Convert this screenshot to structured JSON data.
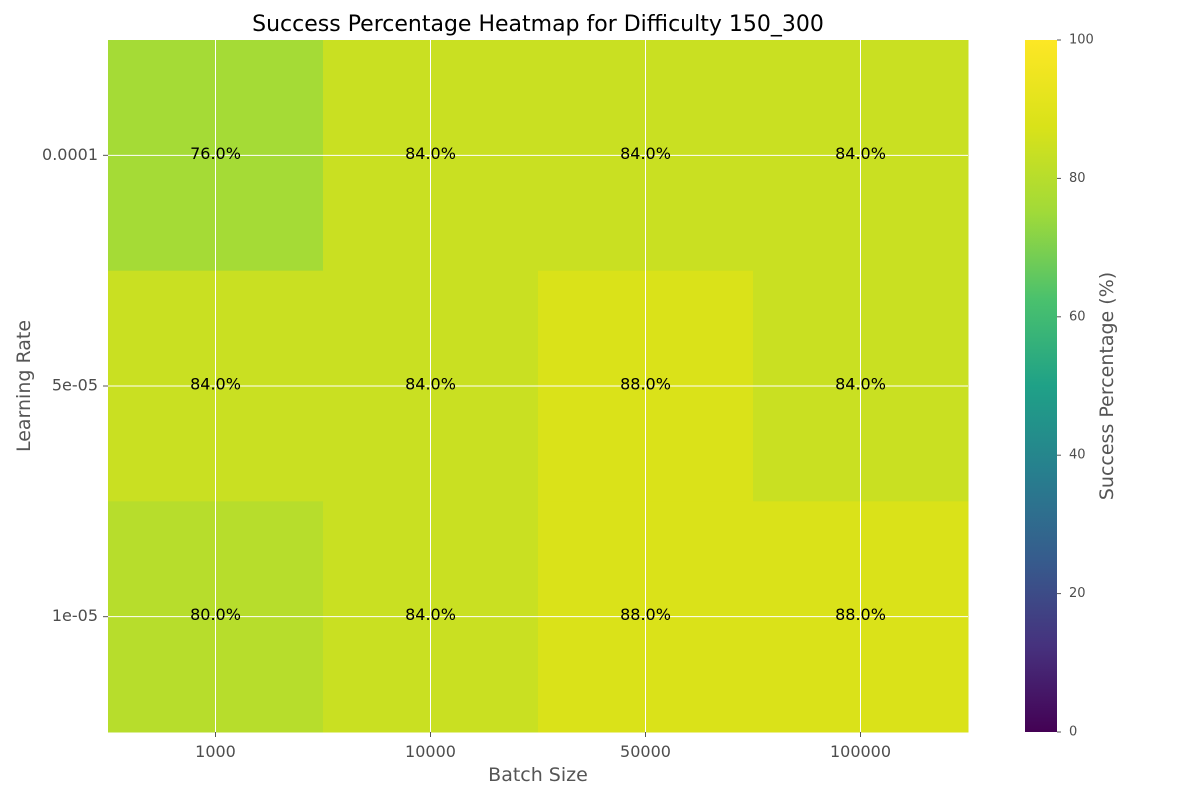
{
  "chart_data": {
    "type": "heatmap",
    "title": "Success Percentage Heatmap for Difficulty 150_300",
    "xlabel": "Batch Size",
    "ylabel": "Learning Rate",
    "x_categories": [
      "1000",
      "10000",
      "50000",
      "100000"
    ],
    "y_categories": [
      "0.0001",
      "5e-05",
      "1e-05"
    ],
    "values": [
      [
        76,
        84,
        84,
        84
      ],
      [
        84,
        84,
        88,
        84
      ],
      [
        80,
        84,
        88,
        88
      ]
    ],
    "cell_labels": [
      [
        "76.0%",
        "84.0%",
        "84.0%",
        "84.0%"
      ],
      [
        "84.0%",
        "84.0%",
        "88.0%",
        "84.0%"
      ],
      [
        "80.0%",
        "84.0%",
        "88.0%",
        "88.0%"
      ]
    ],
    "colorbar": {
      "label": "Success Percentage (%)",
      "range": [
        0,
        100
      ],
      "ticks": [
        "0",
        "20",
        "40",
        "60",
        "80",
        "100"
      ],
      "colormap": "viridis"
    },
    "grid": true
  }
}
